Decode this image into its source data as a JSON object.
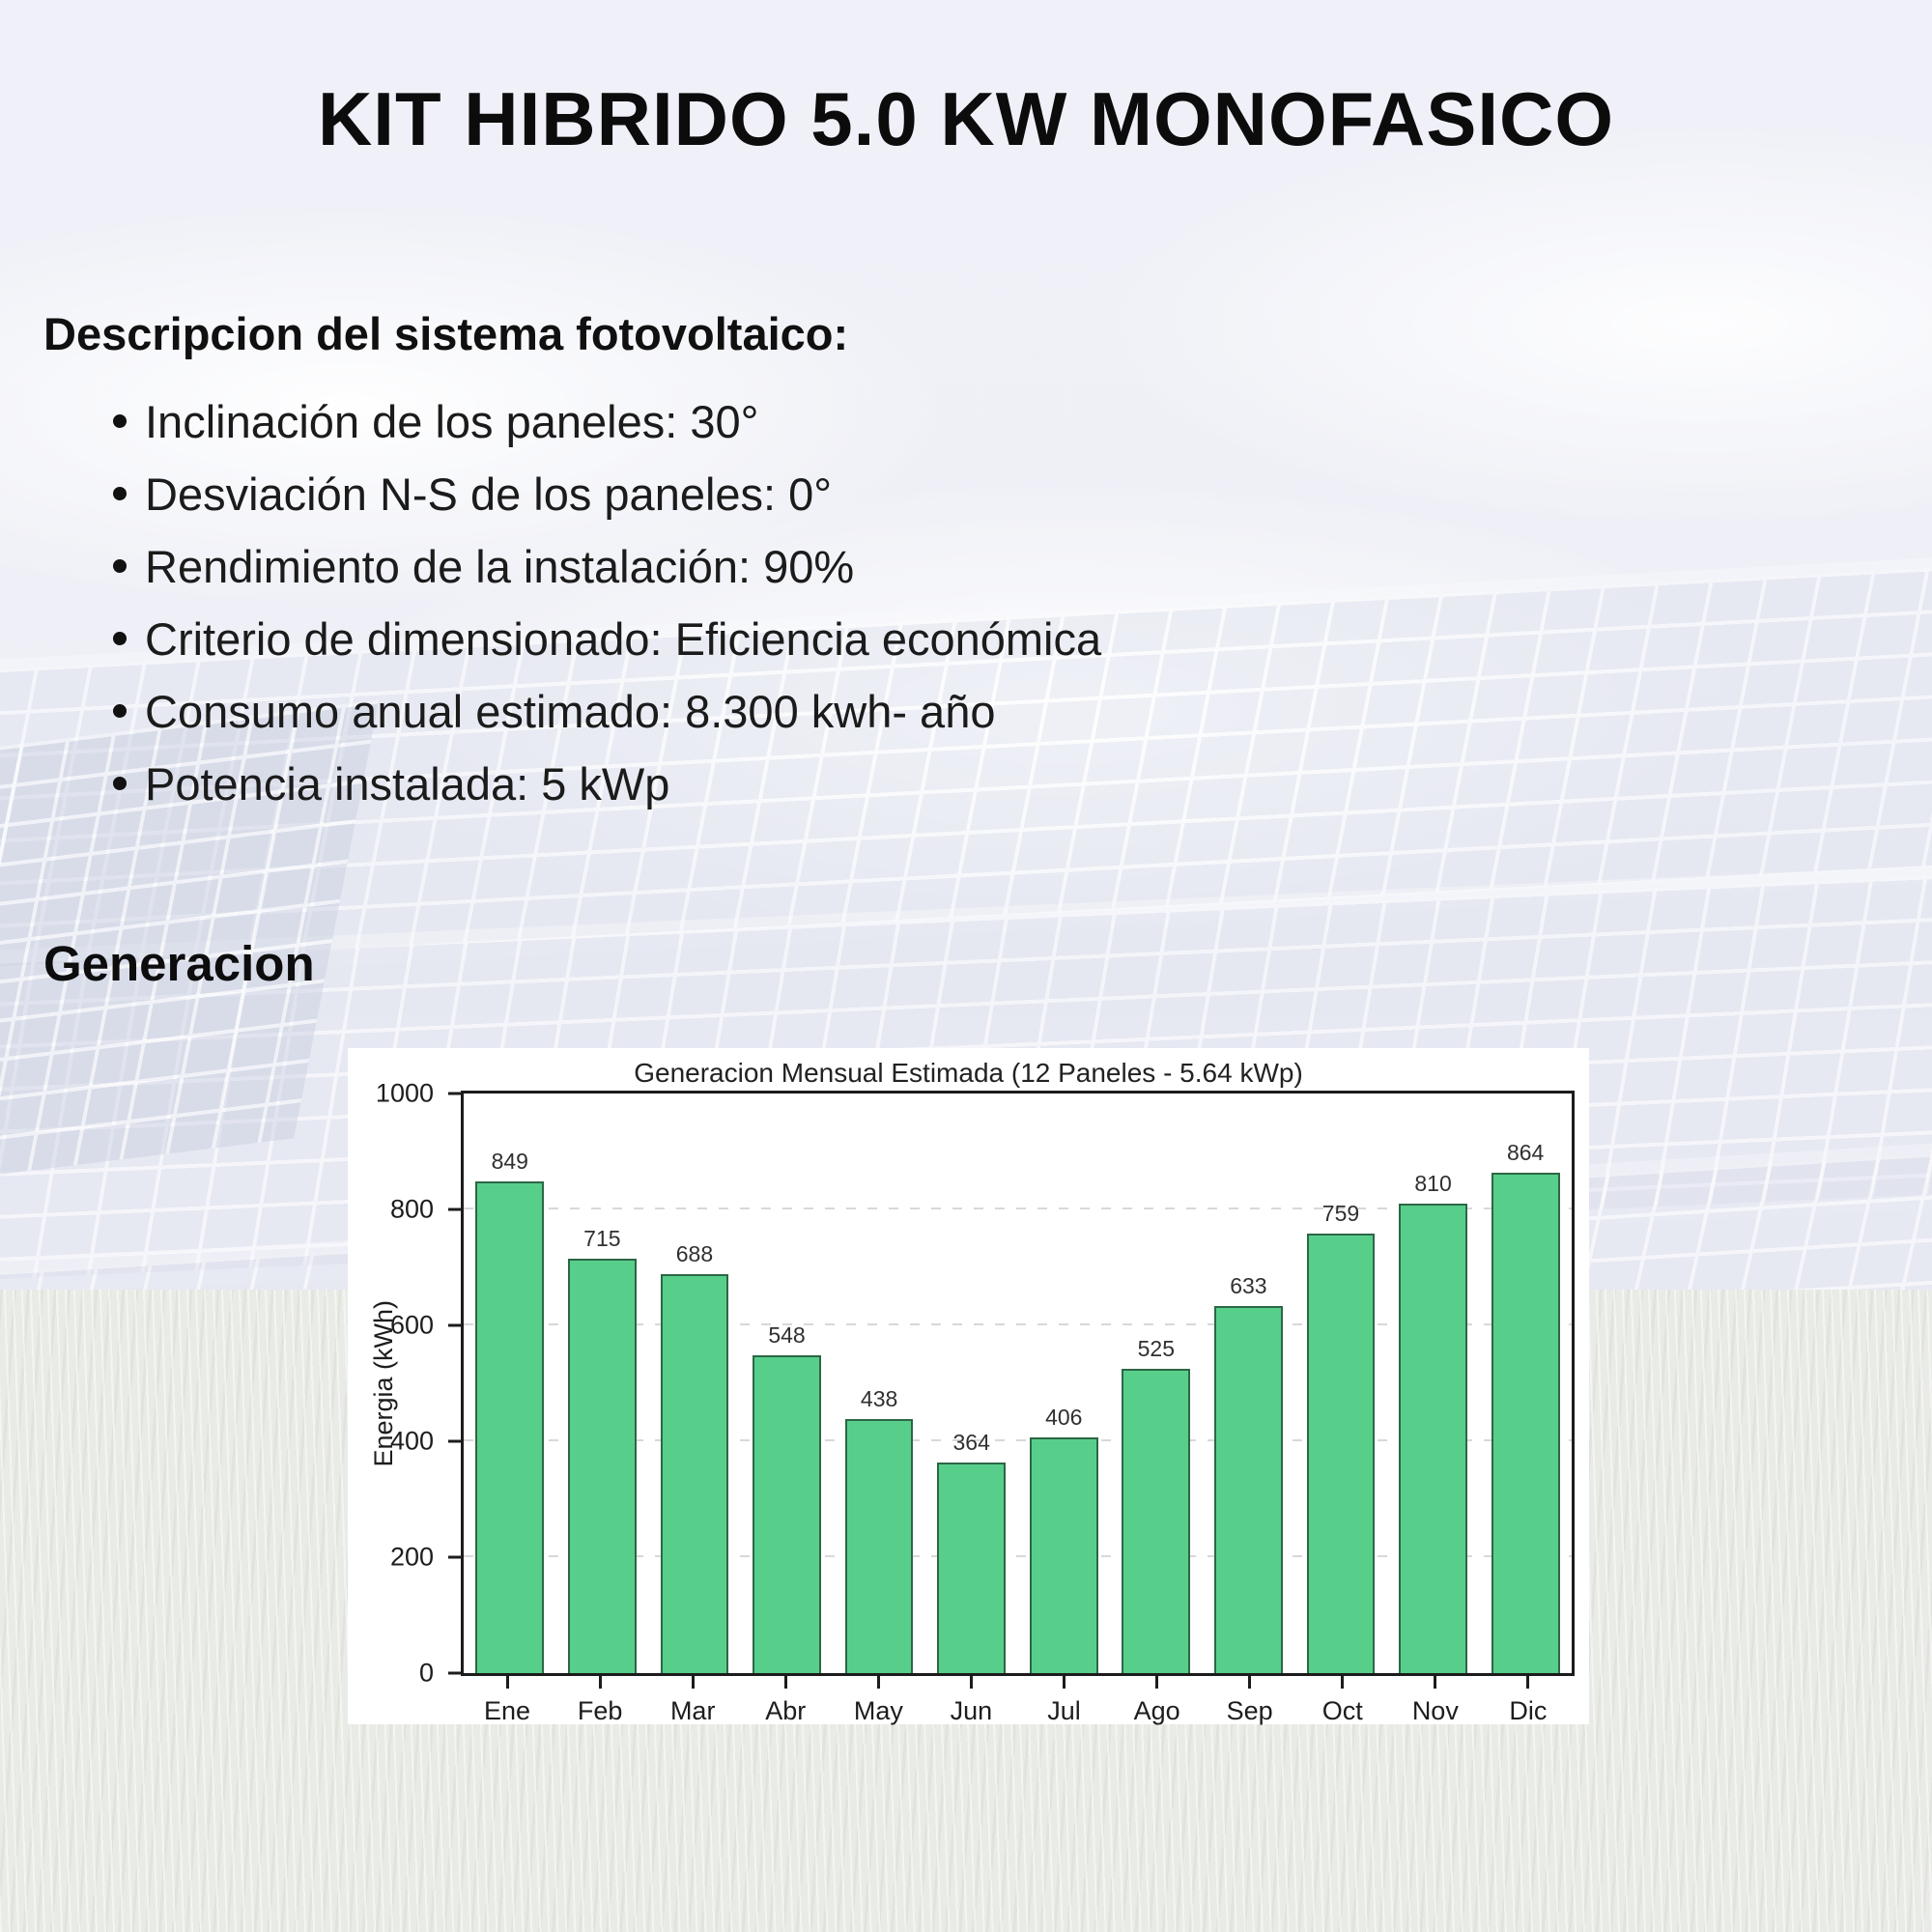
{
  "page": {
    "title": "KIT HIBRIDO 5.0 KW MONOFASICO"
  },
  "description": {
    "heading": "Descripcion del sistema fotovoltaico:",
    "items": [
      "Inclinación de los paneles:  30°",
      "Desviación N-S de los paneles: 0°",
      "Rendimiento de la instalación: 90%",
      "Criterio de dimensionado: Eficiencia económica",
      "Consumo anual estimado: 8.300 kwh- año",
      "Potencia instalada: 5 kWp"
    ]
  },
  "generation": {
    "heading": "Generacion"
  },
  "chart_data": {
    "type": "bar",
    "title": "Generacion Mensual Estimada (12 Paneles - 5.64 kWp)",
    "categories": [
      "Ene",
      "Feb",
      "Mar",
      "Abr",
      "May",
      "Jun",
      "Jul",
      "Ago",
      "Sep",
      "Oct",
      "Nov",
      "Dic"
    ],
    "values": [
      849,
      715,
      688,
      548,
      438,
      364,
      406,
      525,
      633,
      759,
      810,
      864
    ],
    "xlabel": "",
    "ylabel": "Energia (kWh)",
    "ylim": [
      0,
      1000
    ],
    "yticks": [
      0,
      200,
      400,
      600,
      800,
      1000
    ],
    "grid": "horizontal-dashed",
    "legend": "none",
    "bar_color": "#58ce8b",
    "background_color": "#ffffff"
  }
}
